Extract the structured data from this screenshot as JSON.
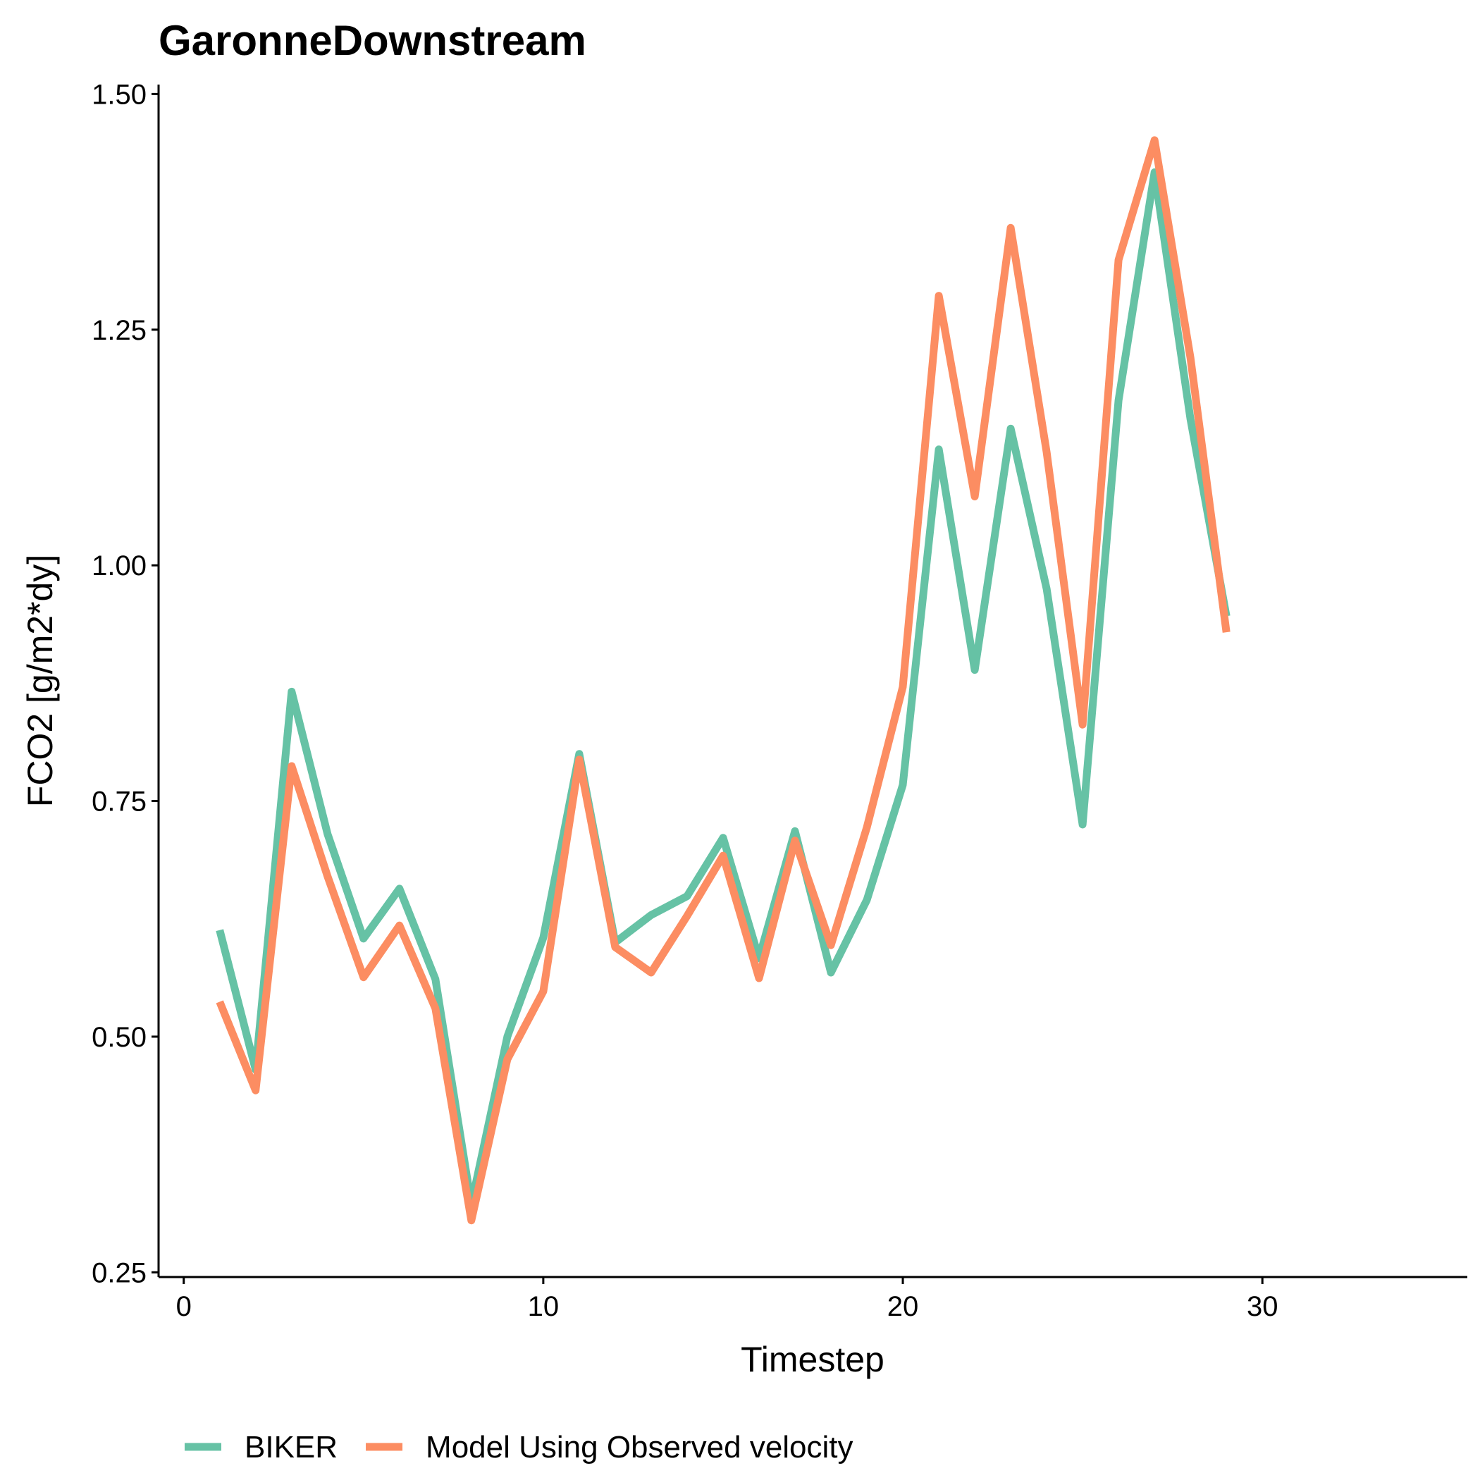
{
  "chart_data": {
    "type": "line",
    "title": "GaronneDownstream",
    "xlabel": "Timestep",
    "ylabel": "FCO2 [g/m2*dy]",
    "xlim": [
      -0.7,
      35.7
    ],
    "ylim": [
      0.245,
      1.51
    ],
    "xticks": [
      0,
      10,
      20,
      30
    ],
    "xtick_labels": [
      "0",
      "10",
      "20",
      "30"
    ],
    "yticks": [
      0.25,
      0.5,
      0.75,
      1.0,
      1.25,
      1.5
    ],
    "ytick_labels": [
      "0.25",
      "0.50",
      "0.75",
      "1.00",
      "1.25",
      "1.50"
    ],
    "grid": false,
    "legend_position": "bottom-left",
    "x": [
      1,
      2,
      3,
      4,
      5,
      6,
      7,
      8,
      9,
      10,
      11,
      12,
      13,
      14,
      15,
      16,
      17,
      18,
      19,
      20,
      21,
      22,
      23,
      24,
      25,
      26,
      27,
      28,
      29
    ],
    "series": [
      {
        "name": "BIKER",
        "color": "#66c2a5",
        "values": [
          0.613,
          0.465,
          0.866,
          0.715,
          0.604,
          0.657,
          0.561,
          0.322,
          0.5,
          0.605,
          0.8,
          0.6,
          0.629,
          0.649,
          0.711,
          0.583,
          0.718,
          0.568,
          0.645,
          0.767,
          1.123,
          0.889,
          1.145,
          0.975,
          0.725,
          1.175,
          1.417,
          1.155,
          0.946
        ]
      },
      {
        "name": "Model Using Observed velocity",
        "color": "#fc8d62",
        "values": [
          0.537,
          0.443,
          0.787,
          0.67,
          0.563,
          0.618,
          0.53,
          0.305,
          0.476,
          0.548,
          0.794,
          0.595,
          0.568,
          0.628,
          0.692,
          0.562,
          0.708,
          0.597,
          0.722,
          0.871,
          1.286,
          1.073,
          1.358,
          1.12,
          0.831,
          1.324,
          1.451,
          1.22,
          0.929
        ]
      }
    ]
  }
}
